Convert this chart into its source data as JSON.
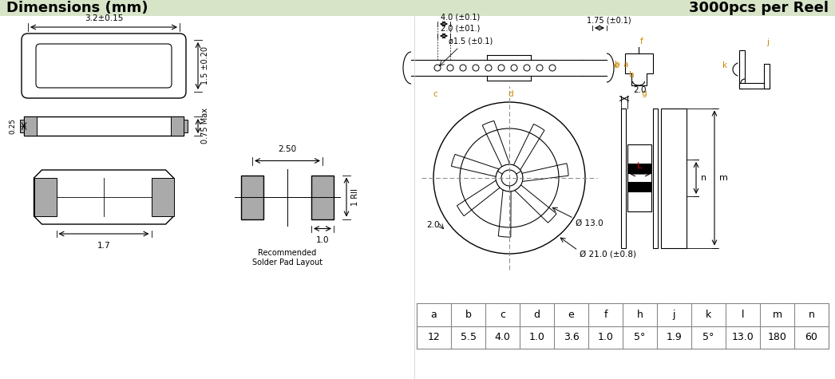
{
  "title_left": "Dimensions (mm)",
  "title_right": "3000pcs per Reel",
  "header_bg": "#d8e4c8",
  "header_text_color": "#000000",
  "bg_color": "#ffffff",
  "line_color": "#000000",
  "gray_fill": "#aaaaaa",
  "table_headers": [
    "a",
    "b",
    "c",
    "d",
    "e",
    "f",
    "h",
    "j",
    "k",
    "l",
    "m",
    "n"
  ],
  "table_values": [
    "12",
    "5.5",
    "4.0",
    "1.0",
    "3.6",
    "1.0",
    "5°",
    "1.9",
    "5°",
    "13.0",
    "180",
    "60"
  ],
  "ann_top_dim": "3.2±0.15",
  "ann_right_dim1": "1.5 ±0.20",
  "ann_right_dim2": "0.75 Max",
  "ann_left_dim": "0.25",
  "ann_bottom_dim": "1.7",
  "ann_solder_width": "2.50",
  "ann_solder_pad_width": "1.0",
  "ann_solder_pad_height": "1 RII",
  "dim_40": "4.0 (±0.1)",
  "dim_20": "2.0 (±01.)",
  "dim_phi15": "ø1.5 (±0.1)",
  "dim_175": "1.75 (±0.1)",
  "phi_13": "Ø 13.0",
  "phi_21": "Ø 21.0 (±0.8)",
  "label_orange": "#cc8800"
}
